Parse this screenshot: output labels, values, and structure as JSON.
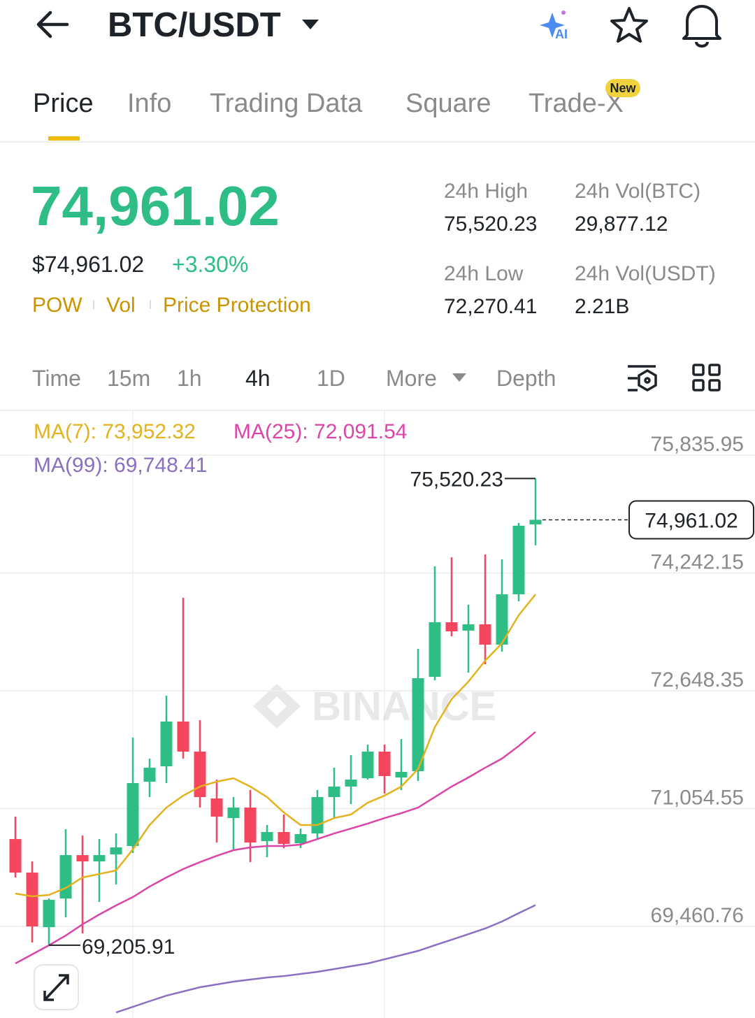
{
  "header": {
    "pair": "BTC/USDT",
    "ai_label": "AI"
  },
  "tabs": [
    "Price",
    "Info",
    "Trading Data",
    "Square",
    "Trade-X"
  ],
  "tab_badge": "New",
  "price": {
    "last": "74,961.02",
    "usd": "$74,961.02",
    "change": "+3.30%",
    "tags": [
      "POW",
      "Vol",
      "Price Protection"
    ]
  },
  "stats": [
    {
      "label": "24h High",
      "value": "75,520.23"
    },
    {
      "label": "24h Vol(BTC)",
      "value": "29,877.12"
    },
    {
      "label": "24h Low",
      "value": "72,270.41"
    },
    {
      "label": "24h Vol(USDT)",
      "value": "2.21B"
    }
  ],
  "intervals": [
    "Time",
    "15m",
    "1h",
    "4h",
    "1D",
    "More",
    "Depth"
  ],
  "chart_data": {
    "type": "candlestick",
    "watermark": "BINANCE",
    "ylim": [
      68221,
      76441
    ],
    "yticks": [
      {
        "value": 75835.95,
        "label": "75,835.95"
      },
      {
        "value": 74242.15,
        "label": "74,242.15"
      },
      {
        "value": 72648.35,
        "label": "72,648.35"
      },
      {
        "value": 71054.55,
        "label": "71,054.55"
      },
      {
        "value": 69460.76,
        "label": "69,460.76"
      }
    ],
    "up_color": "#2ebd85",
    "down_color": "#f6465d",
    "candles": [
      {
        "open": 70642,
        "high": 70945,
        "low": 70122,
        "close": 70188
      },
      {
        "open": 70188,
        "high": 70340,
        "low": 69242,
        "close": 69460
      },
      {
        "open": 69450,
        "high": 69838,
        "low": 69205.91,
        "close": 69819
      },
      {
        "open": 69838,
        "high": 70775,
        "low": 69583,
        "close": 70425
      },
      {
        "open": 70425,
        "high": 70690,
        "low": 69365,
        "close": 70340
      },
      {
        "open": 70340,
        "high": 70642,
        "low": 69791,
        "close": 70425
      },
      {
        "open": 70434,
        "high": 70718,
        "low": 70028,
        "close": 70529
      },
      {
        "open": 70548,
        "high": 72014,
        "low": 70453,
        "close": 71399
      },
      {
        "open": 71418,
        "high": 71730,
        "low": 71210,
        "close": 71607
      },
      {
        "open": 71626,
        "high": 72582,
        "low": 71399,
        "close": 72232
      },
      {
        "open": 72232,
        "high": 73906,
        "low": 71730,
        "close": 71825
      },
      {
        "open": 71825,
        "high": 72251,
        "low": 71068,
        "close": 71210
      },
      {
        "open": 71191,
        "high": 71447,
        "low": 70595,
        "close": 70945
      },
      {
        "open": 70926,
        "high": 71210,
        "low": 70501,
        "close": 71068
      },
      {
        "open": 71068,
        "high": 71305,
        "low": 70330,
        "close": 70595
      },
      {
        "open": 70614,
        "high": 70832,
        "low": 70396,
        "close": 70737
      },
      {
        "open": 70737,
        "high": 70974,
        "low": 70519,
        "close": 70576
      },
      {
        "open": 70586,
        "high": 70784,
        "low": 70519,
        "close": 70709
      },
      {
        "open": 70718,
        "high": 71305,
        "low": 70642,
        "close": 71210
      },
      {
        "open": 71210,
        "high": 71607,
        "low": 70926,
        "close": 71352
      },
      {
        "open": 71352,
        "high": 71778,
        "low": 71115,
        "close": 71447
      },
      {
        "open": 71465,
        "high": 71920,
        "low": 71447,
        "close": 71825
      },
      {
        "open": 71825,
        "high": 71920,
        "low": 71257,
        "close": 71494
      },
      {
        "open": 71475,
        "high": 71995,
        "low": 71305,
        "close": 71551
      },
      {
        "open": 71560,
        "high": 73216,
        "low": 71428,
        "close": 72818
      },
      {
        "open": 72837,
        "high": 74332,
        "low": 72790,
        "close": 73575
      },
      {
        "open": 73575,
        "high": 74455,
        "low": 73386,
        "close": 73452
      },
      {
        "open": 73462,
        "high": 73812,
        "low": 72894,
        "close": 73547
      },
      {
        "open": 73547,
        "high": 74493,
        "low": 73007,
        "close": 73272
      },
      {
        "open": 73272,
        "high": 74426,
        "low": 73178,
        "close": 73953
      },
      {
        "open": 73953,
        "high": 74918,
        "low": 73859,
        "close": 74881
      },
      {
        "open": 74899,
        "high": 75520.23,
        "low": 74616,
        "close": 74961.02
      }
    ],
    "series": [
      {
        "name": "MA(7): 73,952.32",
        "color": "#e3b21c",
        "values": [
          69905,
          69867,
          69886,
          69980,
          70122,
          70169,
          70217,
          70501,
          70832,
          71068,
          71229,
          71352,
          71418,
          71465,
          71352,
          71210,
          71002,
          70832,
          70832,
          70926,
          70974,
          71134,
          71229,
          71352,
          71588,
          72156,
          72534,
          72771,
          73055,
          73291,
          73670,
          73952.32
        ]
      },
      {
        "name": "MA(25): 72,091.54",
        "color": "#dc45a8",
        "values": [
          68959,
          69082,
          69205,
          69337,
          69488,
          69621,
          69744,
          69857,
          69999,
          70122,
          70236,
          70330,
          70415,
          70491,
          70529,
          70548,
          70548,
          70567,
          70642,
          70718,
          70784,
          70851,
          70926,
          70992,
          71068,
          71210,
          71352,
          71475,
          71607,
          71730,
          71901,
          72091.54
        ]
      },
      {
        "name": "MA(99): 69,748.41",
        "color": "#8a6fc2",
        "values": [
          null,
          null,
          null,
          null,
          null,
          null,
          68296,
          68372,
          68448,
          68523,
          68580,
          68637,
          68675,
          68713,
          68741,
          68769,
          68788,
          68817,
          68845,
          68883,
          68921,
          68959,
          69015,
          69072,
          69129,
          69205,
          69280,
          69356,
          69432,
          69526,
          69640,
          69748.41
        ]
      }
    ],
    "high_marker": {
      "label": "75,520.23",
      "value": 75520.23
    },
    "low_marker": {
      "label": "69,205.91",
      "value": 69205.91
    },
    "last_price": {
      "label": "74,961.02",
      "value": 74961.02
    }
  }
}
